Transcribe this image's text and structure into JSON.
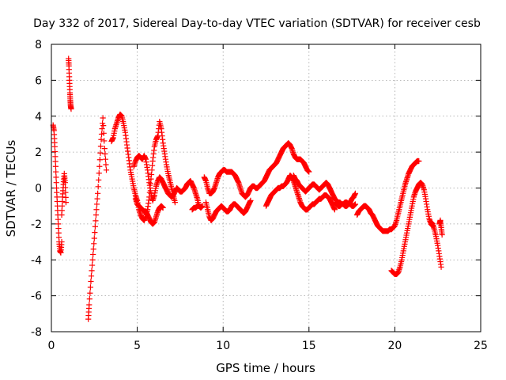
{
  "chart_data": {
    "type": "scatter",
    "title": "Day 332 of 2017, Sidereal Day-to-day VTEC variation (SDTVAR) for receiver cesb",
    "xlabel": "GPS time / hours",
    "ylabel": "SDTVAR / TECUs",
    "xlim": [
      0,
      25
    ],
    "ylim": [
      -8,
      8
    ],
    "xticks": [
      "0",
      "5",
      "10",
      "15",
      "20",
      "25"
    ],
    "yticks": [
      "-8",
      "-6",
      "-4",
      "-2",
      "0",
      "2",
      "4",
      "6",
      "8"
    ],
    "grid": true,
    "marker": "+",
    "color": "#ff0000",
    "series": [
      {
        "name": "s1",
        "x": [
          0.1,
          0.15,
          0.2,
          0.25,
          0.3,
          0.35,
          0.4,
          0.45,
          0.5,
          0.55,
          0.6
        ],
        "y": [
          3.5,
          3.2,
          2.3,
          1.2,
          0.0,
          -1.0,
          -2.0,
          -3.0,
          -3.5,
          -3.6,
          -3.0
        ]
      },
      {
        "name": "s2",
        "x": [
          0.6,
          0.65,
          0.7,
          0.75,
          0.8,
          0.85
        ],
        "y": [
          -1.5,
          -0.5,
          0.2,
          0.8,
          0.3,
          -0.8
        ]
      },
      {
        "name": "s3",
        "x": [
          1.0,
          1.02,
          1.05,
          1.08,
          1.1,
          1.12,
          1.15
        ],
        "y": [
          7.2,
          6.8,
          6.0,
          5.3,
          4.9,
          4.6,
          4.4
        ]
      },
      {
        "name": "s4",
        "x": [
          2.15,
          2.2,
          2.3,
          2.4,
          2.5,
          2.6,
          2.7,
          2.8,
          2.9,
          3.0,
          3.1,
          3.2
        ],
        "y": [
          -7.3,
          -6.5,
          -5.2,
          -4.0,
          -2.8,
          -1.5,
          -0.3,
          1.2,
          2.7,
          3.9,
          2.2,
          1.0
        ]
      },
      {
        "name": "s5",
        "x": [
          3.5,
          3.6,
          3.7,
          3.8,
          3.9,
          4.0,
          4.1,
          4.2,
          4.3,
          4.4,
          4.5,
          4.6,
          4.7,
          4.8,
          4.9,
          5.0,
          5.1,
          5.2,
          5.3,
          5.4,
          5.5,
          5.6,
          5.7,
          5.8,
          5.9,
          6.0,
          6.1,
          6.2,
          6.3,
          6.4,
          6.5,
          6.6,
          6.7,
          6.8,
          6.9,
          7.0,
          7.1,
          7.2
        ],
        "y": [
          2.6,
          2.8,
          3.3,
          3.6,
          3.9,
          4.1,
          4.0,
          3.6,
          3.1,
          2.4,
          1.7,
          1.0,
          0.5,
          0.0,
          -0.4,
          -0.7,
          -1.2,
          -1.5,
          -1.7,
          -1.8,
          -1.6,
          -1.2,
          -0.5,
          0.5,
          1.5,
          2.3,
          2.7,
          2.9,
          3.7,
          3.3,
          2.5,
          1.9,
          1.3,
          0.8,
          0.4,
          0.0,
          -0.4,
          -0.8
        ]
      },
      {
        "name": "s6",
        "x": [
          4.8,
          4.9,
          5.0,
          5.1,
          5.2,
          5.3,
          5.4,
          5.5,
          5.6,
          5.7,
          5.8,
          5.9,
          6.0,
          6.1,
          6.2,
          6.3,
          6.4,
          6.5,
          6.6,
          6.7,
          6.8,
          6.9,
          7.0,
          7.1,
          7.2,
          7.3,
          7.4,
          7.5,
          7.6,
          7.7,
          7.8,
          7.9,
          8.0,
          8.1,
          8.2,
          8.3,
          8.4,
          8.5,
          8.6
        ],
        "y": [
          1.2,
          1.5,
          1.7,
          1.8,
          1.7,
          1.6,
          1.8,
          1.6,
          1.0,
          0.3,
          -0.3,
          -0.7,
          -0.4,
          0.1,
          0.4,
          0.6,
          0.5,
          0.3,
          0.1,
          -0.1,
          -0.3,
          -0.4,
          -0.5,
          -0.4,
          -0.2,
          0.0,
          -0.1,
          -0.2,
          -0.2,
          -0.1,
          0.0,
          0.2,
          0.3,
          0.4,
          0.2,
          0.0,
          -0.3,
          -0.6,
          -1.0
        ]
      },
      {
        "name": "s7",
        "x": [
          4.9,
          5.0,
          5.1,
          5.2,
          5.3,
          5.4,
          5.5,
          5.6,
          5.7,
          5.8,
          5.9,
          6.0,
          6.1,
          6.2,
          6.3,
          6.4,
          6.5
        ],
        "y": [
          -0.6,
          -0.9,
          -1.0,
          -1.1,
          -1.2,
          -1.3,
          -1.3,
          -1.5,
          -1.7,
          -1.9,
          -2.0,
          -1.9,
          -1.6,
          -1.3,
          -1.1,
          -1.0,
          -1.1
        ]
      },
      {
        "name": "s8",
        "x": [
          8.2,
          8.3,
          8.4,
          8.5,
          8.6,
          8.7,
          8.8
        ],
        "y": [
          -1.2,
          -1.1,
          -1.1,
          -1.0,
          -1.0,
          -1.1,
          -1.0
        ]
      },
      {
        "name": "s9",
        "x": [
          8.9,
          9.0,
          9.1,
          9.2,
          9.3,
          9.4,
          9.5,
          9.6,
          9.7,
          9.8,
          9.9,
          10.0,
          10.1,
          10.2,
          10.3,
          10.4,
          10.5,
          10.6,
          10.7,
          10.8,
          10.9,
          11.0,
          11.1,
          11.2,
          11.3,
          11.4,
          11.5,
          11.6,
          11.7,
          11.8,
          11.9,
          12.0,
          12.1,
          12.2,
          12.3,
          12.4,
          12.5,
          12.6,
          12.7,
          12.8,
          12.9,
          13.0,
          13.1,
          13.2,
          13.3,
          13.4,
          13.5,
          13.6,
          13.7,
          13.8,
          13.9,
          14.0,
          14.1,
          14.2,
          14.3,
          14.4,
          14.5,
          14.6,
          14.7,
          14.8,
          14.9,
          15.0
        ],
        "y": [
          0.6,
          0.4,
          0.0,
          -0.3,
          -0.3,
          -0.2,
          0.0,
          0.3,
          0.6,
          0.8,
          0.9,
          1.0,
          1.0,
          0.9,
          0.9,
          0.9,
          0.9,
          0.8,
          0.7,
          0.5,
          0.3,
          0.0,
          -0.3,
          -0.4,
          -0.5,
          -0.4,
          -0.2,
          0.0,
          0.1,
          0.1,
          0.0,
          0.0,
          0.1,
          0.2,
          0.3,
          0.4,
          0.6,
          0.8,
          1.0,
          1.1,
          1.2,
          1.3,
          1.4,
          1.6,
          1.8,
          2.0,
          2.2,
          2.3,
          2.4,
          2.5,
          2.4,
          2.2,
          1.9,
          1.7,
          1.6,
          1.6,
          1.6,
          1.5,
          1.4,
          1.2,
          1.0,
          0.9
        ]
      },
      {
        "name": "s10",
        "x": [
          9.0,
          9.1,
          9.2,
          9.3,
          9.4,
          9.5,
          9.6,
          9.7,
          9.8,
          9.9,
          10.0,
          10.1,
          10.2,
          10.3,
          10.4,
          10.5,
          10.6,
          10.7,
          10.8,
          10.9,
          11.0,
          11.1,
          11.2,
          11.3,
          11.4,
          11.5,
          11.6
        ],
        "y": [
          -0.8,
          -1.2,
          -1.6,
          -1.8,
          -1.7,
          -1.5,
          -1.3,
          -1.2,
          -1.1,
          -1.0,
          -1.1,
          -1.2,
          -1.3,
          -1.3,
          -1.2,
          -1.0,
          -0.9,
          -0.9,
          -1.0,
          -1.1,
          -1.2,
          -1.3,
          -1.4,
          -1.3,
          -1.1,
          -0.9,
          -0.7
        ]
      },
      {
        "name": "s11",
        "x": [
          12.5,
          12.6,
          12.7,
          12.8,
          12.9,
          13.0,
          13.1,
          13.2,
          13.3,
          13.4,
          13.5,
          13.6,
          13.7,
          13.8,
          13.9,
          14.0,
          14.1,
          14.2,
          14.3,
          14.4,
          14.5,
          14.6,
          14.7,
          14.8,
          14.9,
          15.0,
          15.1,
          15.2,
          15.3,
          15.4,
          15.5,
          15.6,
          15.7,
          15.8,
          15.9,
          16.0,
          16.1,
          16.2,
          16.3,
          16.4,
          16.5
        ],
        "y": [
          -1.0,
          -0.8,
          -0.6,
          -0.4,
          -0.3,
          -0.2,
          -0.1,
          0.0,
          0.0,
          0.1,
          0.1,
          0.2,
          0.3,
          0.5,
          0.7,
          0.6,
          0.4,
          0.1,
          -0.2,
          -0.5,
          -0.8,
          -1.0,
          -1.1,
          -1.2,
          -1.2,
          -1.1,
          -1.0,
          -0.9,
          -0.9,
          -0.8,
          -0.7,
          -0.6,
          -0.6,
          -0.5,
          -0.4,
          -0.4,
          -0.5,
          -0.6,
          -0.8,
          -1.0,
          -1.2
        ]
      },
      {
        "name": "s12",
        "x": [
          14.1,
          14.2,
          14.3,
          14.4,
          14.5,
          14.6,
          14.7,
          14.8,
          14.9,
          15.0,
          15.1,
          15.2,
          15.3,
          15.4,
          15.5,
          15.6,
          15.7,
          15.8,
          15.9,
          16.0,
          16.1,
          16.2,
          16.3,
          16.4,
          16.5,
          16.6,
          16.7,
          16.8,
          16.9,
          17.0,
          17.1,
          17.2,
          17.3,
          17.4,
          17.5,
          17.6,
          17.7
        ],
        "y": [
          0.7,
          0.5,
          0.4,
          0.2,
          0.1,
          0.0,
          -0.1,
          -0.2,
          -0.1,
          0.0,
          0.1,
          0.2,
          0.2,
          0.1,
          0.0,
          -0.1,
          0.0,
          0.1,
          0.2,
          0.3,
          0.2,
          0.0,
          -0.2,
          -0.4,
          -0.6,
          -0.7,
          -0.8,
          -0.8,
          -0.9,
          -0.9,
          -1.0,
          -1.0,
          -0.9,
          -0.8,
          -0.6,
          -0.5,
          -0.3
        ]
      },
      {
        "name": "s13",
        "x": [
          16.5,
          16.6,
          16.7,
          16.8,
          16.9,
          17.0,
          17.1,
          17.2,
          17.3,
          17.4,
          17.5,
          17.6,
          17.7
        ],
        "y": [
          -0.8,
          -0.9,
          -1.0,
          -1.0,
          -0.9,
          -0.9,
          -0.8,
          -0.8,
          -0.9,
          -0.9,
          -1.0,
          -1.0,
          -0.9
        ]
      },
      {
        "name": "s14",
        "x": [
          17.8,
          17.9,
          18.0,
          18.1,
          18.2,
          18.3,
          18.4,
          18.5,
          18.6,
          18.7,
          18.8,
          18.9,
          19.0,
          19.1,
          19.2,
          19.3,
          19.4,
          19.5,
          19.6,
          19.7,
          19.8,
          19.9,
          20.0,
          20.1,
          20.2,
          20.3,
          20.4,
          20.5,
          20.6,
          20.7,
          20.8,
          20.9,
          21.0,
          21.1,
          21.2,
          21.3,
          21.4
        ],
        "y": [
          -1.5,
          -1.3,
          -1.2,
          -1.1,
          -1.0,
          -1.0,
          -1.1,
          -1.2,
          -1.4,
          -1.5,
          -1.7,
          -1.9,
          -2.1,
          -2.2,
          -2.3,
          -2.4,
          -2.4,
          -2.4,
          -2.4,
          -2.3,
          -2.3,
          -2.2,
          -2.1,
          -1.8,
          -1.4,
          -1.0,
          -0.6,
          -0.2,
          0.2,
          0.5,
          0.8,
          1.0,
          1.2,
          1.3,
          1.4,
          1.5,
          1.5
        ]
      },
      {
        "name": "s15",
        "x": [
          19.8,
          19.9,
          20.0,
          20.1,
          20.2,
          20.3,
          20.4,
          20.5,
          20.6,
          20.7,
          20.8,
          20.9,
          21.0,
          21.1,
          21.2,
          21.3,
          21.4,
          21.5,
          21.6,
          21.7,
          21.8,
          21.9,
          22.0,
          22.1,
          22.2
        ],
        "y": [
          -4.6,
          -4.7,
          -4.8,
          -4.8,
          -4.7,
          -4.4,
          -4.0,
          -3.5,
          -3.0,
          -2.5,
          -2.0,
          -1.5,
          -1.0,
          -0.5,
          -0.2,
          0.0,
          0.2,
          0.3,
          0.2,
          -0.1,
          -0.6,
          -1.2,
          -1.7,
          -2.0,
          -2.1
        ]
      },
      {
        "name": "s16",
        "x": [
          22.1,
          22.2,
          22.3,
          22.4,
          22.5,
          22.6,
          22.7
        ],
        "y": [
          -1.9,
          -2.0,
          -2.3,
          -2.7,
          -3.2,
          -3.8,
          -4.4
        ]
      },
      {
        "name": "s17",
        "x": [
          22.6,
          22.65,
          22.7,
          22.75
        ],
        "y": [
          -2.0,
          -1.8,
          -2.2,
          -2.6
        ]
      }
    ]
  }
}
